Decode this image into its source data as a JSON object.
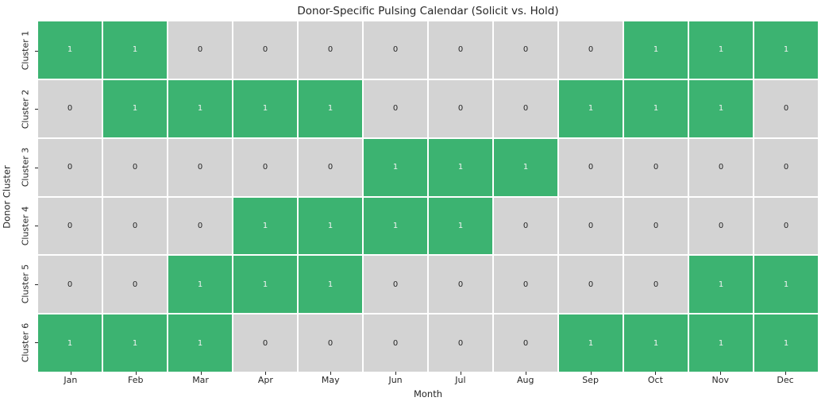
{
  "chart_data": {
    "type": "heatmap",
    "title": "Donor-Specific Pulsing Calendar (Solicit vs. Hold)",
    "xlabel": "Month",
    "ylabel": "Donor Cluster",
    "x_categories": [
      "Jan",
      "Feb",
      "Mar",
      "Apr",
      "May",
      "Jun",
      "Jul",
      "Aug",
      "Sep",
      "Oct",
      "Nov",
      "Dec"
    ],
    "y_categories": [
      "Cluster 1",
      "Cluster 2",
      "Cluster 3",
      "Cluster 4",
      "Cluster 5",
      "Cluster 6"
    ],
    "values": [
      [
        1,
        1,
        0,
        0,
        0,
        0,
        0,
        0,
        0,
        1,
        1,
        1
      ],
      [
        0,
        1,
        1,
        1,
        1,
        0,
        0,
        0,
        1,
        1,
        1,
        0
      ],
      [
        0,
        0,
        0,
        0,
        0,
        1,
        1,
        1,
        0,
        0,
        0,
        0
      ],
      [
        0,
        0,
        0,
        1,
        1,
        1,
        1,
        0,
        0,
        0,
        0,
        0
      ],
      [
        0,
        0,
        1,
        1,
        1,
        0,
        0,
        0,
        0,
        0,
        1,
        1
      ],
      [
        1,
        1,
        1,
        0,
        0,
        0,
        0,
        0,
        1,
        1,
        1,
        1
      ]
    ],
    "value_colors": {
      "solicit_1": "#3cb371",
      "hold_0": "#d3d3d3"
    },
    "annotation_colors": {
      "on_green": "#f2f2f2",
      "on_gray": "#262626"
    },
    "legend": "none",
    "grid_gap_color": "#ffffff"
  }
}
